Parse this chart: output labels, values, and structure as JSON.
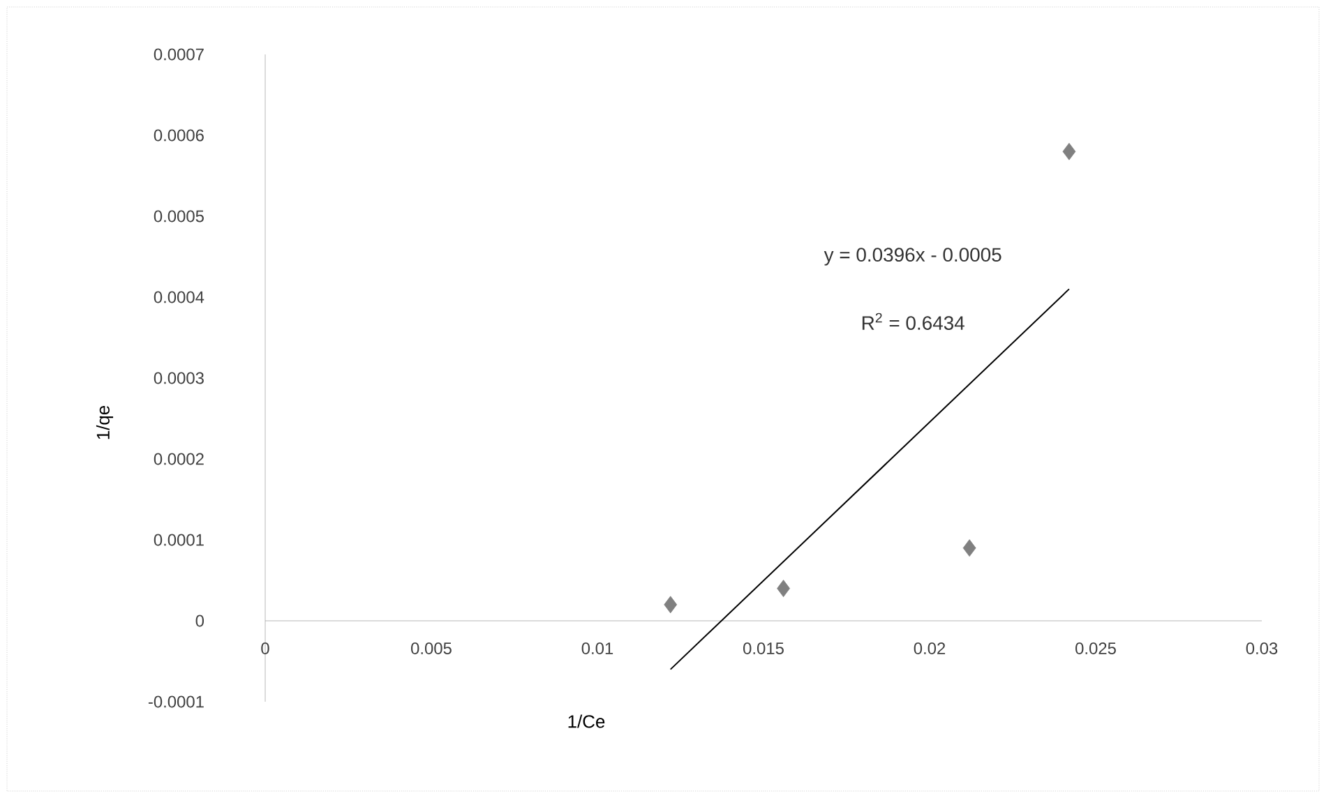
{
  "chart_data": {
    "type": "scatter",
    "xlabel": "1/Ce",
    "ylabel": "1/qe",
    "xlim": [
      0,
      0.03
    ],
    "ylim": [
      -0.0001,
      0.0007
    ],
    "xticks": [
      {
        "value": 0,
        "label": "0"
      },
      {
        "value": 0.005,
        "label": "0.005"
      },
      {
        "value": 0.01,
        "label": "0.01"
      },
      {
        "value": 0.015,
        "label": "0.015"
      },
      {
        "value": 0.02,
        "label": "0.02"
      },
      {
        "value": 0.025,
        "label": "0.025"
      },
      {
        "value": 0.03,
        "label": "0.03"
      }
    ],
    "yticks": [
      {
        "value": -0.0001,
        "label": "-0.0001"
      },
      {
        "value": 0,
        "label": "0"
      },
      {
        "value": 0.0001,
        "label": "0.0001"
      },
      {
        "value": 0.0002,
        "label": "0.0002"
      },
      {
        "value": 0.0003,
        "label": "0.0003"
      },
      {
        "value": 0.0004,
        "label": "0.0004"
      },
      {
        "value": 0.0005,
        "label": "0.0005"
      },
      {
        "value": 0.0006,
        "label": "0.0006"
      },
      {
        "value": 0.0007,
        "label": "0.0007"
      }
    ],
    "marker": "diamond",
    "grid": false,
    "series": [
      {
        "color": "#808080",
        "x": [
          0.0122,
          0.0156,
          0.0212,
          0.0242
        ],
        "values": [
          2e-05,
          4e-05,
          9e-05,
          0.00058
        ]
      },
      {
        "type": "line",
        "color": "#000000",
        "marker": "none",
        "x": [
          0.0122,
          0.0242
        ],
        "values": [
          -6e-05,
          0.00041
        ]
      }
    ],
    "annotations": [
      "y = 0.0396x - 0.0005",
      "R$^{2}$ = 0.6434"
    ]
  }
}
